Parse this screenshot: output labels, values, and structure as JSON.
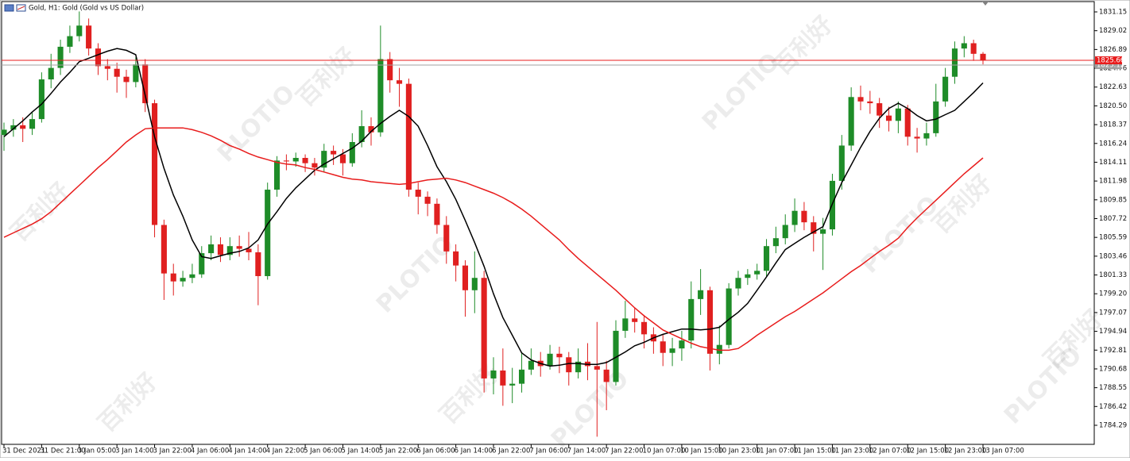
{
  "chart_data": {
    "type": "candlestick",
    "title": "Gold, H1:  Gold (Gold vs US Dollar)",
    "watermark": [
      "百利好",
      "PLOTIO"
    ],
    "categories": [
      "31 Dec 2021",
      null,
      null,
      null,
      "31 Dec 21:00",
      null,
      null,
      null,
      "3 Jan 05:00",
      null,
      null,
      null,
      "3 Jan 14:00",
      null,
      null,
      null,
      "3 Jan 22:00",
      null,
      null,
      null,
      "4 Jan 06:00",
      null,
      null,
      null,
      "4 Jan 14:00",
      null,
      null,
      null,
      "4 Jan 22:00",
      null,
      null,
      null,
      "5 Jan 06:00",
      null,
      null,
      null,
      "5 Jan 14:00",
      null,
      null,
      null,
      "5 Jan 22:00",
      null,
      null,
      null,
      "6 Jan 06:00",
      null,
      null,
      null,
      "6 Jan 14:00",
      null,
      null,
      null,
      "6 Jan 22:00",
      null,
      null,
      null,
      "7 Jan 06:00",
      null,
      null,
      null,
      "7 Jan 14:00",
      null,
      null,
      null,
      "7 Jan 22:00",
      null,
      null,
      null,
      "10 Jan 07:00",
      null,
      null,
      null,
      "10 Jan 15:00",
      null,
      null,
      null,
      "10 Jan 23:00",
      null,
      null,
      null,
      "11 Jan 07:00",
      null,
      null,
      null,
      "11 Jan 15:00",
      null,
      null,
      null,
      "11 Jan 23:00",
      null,
      null,
      null,
      "12 Jan 07:00",
      null,
      null,
      null,
      "12 Jan 15:00",
      null,
      null,
      null,
      "12 Jan 23:00",
      null,
      null,
      null,
      "13 Jan 07:00"
    ],
    "open": [
      1817.2,
      1817.8,
      1818.3,
      1817.9,
      1819.0,
      1823.5,
      1824.8,
      1827.2,
      1828.4,
      1829.6,
      1827.0,
      1825.0,
      1824.7,
      1823.8,
      1823.2,
      1825.2,
      1820.8,
      1807.0,
      1801.5,
      1800.6,
      1801.0,
      1801.4,
      1803.8,
      1804.8,
      1803.6,
      1804.6,
      1804.3,
      1803.9,
      1801.2,
      1811.0,
      1814.3,
      1814.2,
      1814.6,
      1814.0,
      1813.5,
      1815.4,
      1815.0,
      1814.0,
      1816.4,
      1818.2,
      1817.5,
      1825.8,
      1823.4,
      1823.0,
      1811.0,
      1810.2,
      1809.4,
      1807.0,
      1804.0,
      1802.4,
      1799.6,
      1801.0,
      1789.6,
      1790.5,
      1788.8,
      1789.0,
      1790.6,
      1791.6,
      1791.0,
      1792.4,
      1792.0,
      1790.3,
      1791.5,
      1791.0,
      1790.6,
      1789.2,
      1795.0,
      1796.4,
      1796.0,
      1794.6,
      1793.8,
      1792.5,
      1793.0,
      1793.9,
      1798.6,
      1799.6,
      1792.4,
      1793.4,
      1799.8,
      1801.0,
      1801.4,
      1801.8,
      1804.6,
      1805.5,
      1807.0,
      1808.6,
      1807.3,
      1806.0,
      1806.5,
      1812.0,
      1816.0,
      1821.5,
      1821.0,
      1820.8,
      1819.4,
      1818.8,
      1820.2,
      1817.0,
      1816.8,
      1817.4,
      1821.0,
      1823.8,
      1827.0,
      1827.6,
      1826.4
    ],
    "high": [
      1818.6,
      1819.0,
      1819.2,
      1819.8,
      1824.3,
      1826.4,
      1828.0,
      1829.6,
      1831.2,
      1830.4,
      1827.6,
      1825.8,
      1825.4,
      1824.6,
      1826.0,
      1825.8,
      1821.2,
      1807.6,
      1802.6,
      1801.8,
      1802.6,
      1804.6,
      1805.8,
      1805.6,
      1805.6,
      1805.8,
      1806.2,
      1804.8,
      1811.8,
      1814.8,
      1815.0,
      1815.2,
      1815.0,
      1814.6,
      1816.2,
      1816.0,
      1815.6,
      1817.4,
      1820.0,
      1819.2,
      1829.6,
      1826.6,
      1824.8,
      1823.6,
      1811.8,
      1810.8,
      1810.0,
      1808.0,
      1804.8,
      1803.0,
      1804.0,
      1801.8,
      1792.0,
      1793.0,
      1790.8,
      1792.6,
      1793.0,
      1792.6,
      1793.4,
      1793.2,
      1792.6,
      1793.0,
      1793.6,
      1796.0,
      1791.6,
      1796.2,
      1798.4,
      1797.6,
      1796.8,
      1795.4,
      1794.6,
      1794.2,
      1795.0,
      1800.6,
      1802.0,
      1800.0,
      1795.6,
      1800.4,
      1801.8,
      1802.0,
      1802.6,
      1805.4,
      1806.8,
      1808.2,
      1810.0,
      1809.6,
      1808.0,
      1807.8,
      1812.8,
      1817.2,
      1822.6,
      1822.8,
      1822.2,
      1821.4,
      1820.4,
      1821.0,
      1820.6,
      1818.0,
      1818.6,
      1823.0,
      1824.8,
      1827.8,
      1828.4,
      1828.0,
      1826.6
    ],
    "low": [
      1815.4,
      1817.0,
      1816.4,
      1817.2,
      1818.6,
      1822.5,
      1824.0,
      1826.5,
      1827.8,
      1826.2,
      1824.0,
      1823.4,
      1822.0,
      1821.4,
      1822.6,
      1819.8,
      1805.6,
      1798.5,
      1799.0,
      1800.0,
      1800.4,
      1801.0,
      1803.0,
      1802.8,
      1803.0,
      1803.4,
      1803.0,
      1797.9,
      1800.8,
      1810.2,
      1813.2,
      1813.6,
      1813.0,
      1812.6,
      1813.0,
      1813.8,
      1812.6,
      1813.6,
      1815.8,
      1816.0,
      1817.0,
      1822.0,
      1820.4,
      1810.2,
      1808.2,
      1808.0,
      1806.0,
      1802.6,
      1800.6,
      1796.6,
      1797.0,
      1788.0,
      1787.8,
      1786.5,
      1786.8,
      1788.0,
      1790.0,
      1789.8,
      1790.6,
      1790.2,
      1788.8,
      1789.6,
      1789.4,
      1783.0,
      1786.0,
      1788.8,
      1794.2,
      1794.8,
      1793.0,
      1792.4,
      1791.0,
      1791.0,
      1791.6,
      1793.0,
      1796.8,
      1790.5,
      1791.2,
      1793.0,
      1799.0,
      1800.2,
      1800.8,
      1801.2,
      1803.8,
      1804.8,
      1806.2,
      1806.4,
      1804.0,
      1801.9,
      1805.8,
      1811.0,
      1815.4,
      1820.0,
      1819.6,
      1818.0,
      1817.6,
      1817.4,
      1816.0,
      1815.2,
      1816.0,
      1817.0,
      1820.4,
      1823.0,
      1826.0,
      1825.6,
      1825.2
    ],
    "close": [
      1817.8,
      1818.3,
      1817.9,
      1819.0,
      1823.5,
      1824.8,
      1827.2,
      1828.4,
      1829.6,
      1827.0,
      1825.0,
      1824.7,
      1823.8,
      1823.2,
      1825.2,
      1820.8,
      1807.0,
      1801.5,
      1800.6,
      1801.0,
      1801.4,
      1803.8,
      1804.8,
      1803.6,
      1804.6,
      1804.3,
      1803.9,
      1801.2,
      1811.0,
      1814.3,
      1814.2,
      1814.6,
      1814.0,
      1813.5,
      1815.4,
      1815.0,
      1814.0,
      1816.4,
      1818.2,
      1817.5,
      1825.8,
      1823.4,
      1823.0,
      1811.0,
      1810.2,
      1809.4,
      1807.0,
      1804.0,
      1802.4,
      1799.6,
      1801.0,
      1789.6,
      1790.5,
      1788.8,
      1789.0,
      1790.6,
      1791.6,
      1791.0,
      1792.4,
      1792.0,
      1790.3,
      1791.5,
      1791.0,
      1790.6,
      1789.2,
      1795.0,
      1796.4,
      1796.0,
      1794.6,
      1793.8,
      1792.5,
      1793.0,
      1793.9,
      1798.6,
      1799.6,
      1792.4,
      1793.4,
      1799.8,
      1801.0,
      1801.4,
      1801.8,
      1804.6,
      1805.5,
      1807.0,
      1808.6,
      1807.3,
      1806.0,
      1806.5,
      1812.0,
      1816.0,
      1821.5,
      1821.0,
      1820.8,
      1819.4,
      1818.8,
      1820.2,
      1817.0,
      1816.8,
      1817.4,
      1821.0,
      1823.8,
      1827.0,
      1827.6,
      1826.4,
      1825.66
    ],
    "up_color": "#1e8c28",
    "down_color": "#e02020",
    "overlays": [
      {
        "color": "#000000",
        "values": [
          1817.0,
          1817.9,
          1818.8,
          1819.8,
          1820.7,
          1821.9,
          1823.2,
          1824.3,
          1825.5,
          1825.9,
          1826.3,
          1826.7,
          1827.0,
          1826.8,
          1826.3,
          1821.7,
          1817.0,
          1813.4,
          1810.4,
          1808.0,
          1805.3,
          1803.4,
          1803.2,
          1803.5,
          1803.8,
          1804.0,
          1804.4,
          1805.3,
          1807.1,
          1808.5,
          1810.0,
          1811.2,
          1812.2,
          1813.2,
          1813.9,
          1814.5,
          1815.1,
          1815.7,
          1816.5,
          1817.6,
          1818.5,
          1819.3,
          1820.0,
          1819.3,
          1818.2,
          1816.0,
          1813.6,
          1811.9,
          1809.9,
          1807.5,
          1805.0,
          1802.3,
          1799.2,
          1796.5,
          1794.5,
          1792.5,
          1791.7,
          1791.3,
          1791.0,
          1791.1,
          1791.3,
          1791.3,
          1791.2,
          1791.2,
          1791.4,
          1792.0,
          1792.6,
          1793.3,
          1793.7,
          1794.2,
          1794.6,
          1794.9,
          1795.2,
          1795.2,
          1795.1,
          1795.2,
          1795.4,
          1796.3,
          1797.1,
          1798.1,
          1799.6,
          1801.1,
          1802.7,
          1804.2,
          1804.9,
          1805.6,
          1806.2,
          1806.8,
          1809.4,
          1811.8,
          1813.8,
          1815.8,
          1817.6,
          1819.1,
          1820.2,
          1820.8,
          1820.2,
          1819.4,
          1818.8,
          1819.0,
          1819.5,
          1820.0,
          1821.0,
          1822.0,
          1823.1
        ]
      },
      {
        "color": "#e81c1c",
        "values": [
          1805.6,
          1806.1,
          1806.6,
          1807.1,
          1807.7,
          1808.5,
          1809.5,
          1810.5,
          1811.5,
          1812.5,
          1813.5,
          1814.4,
          1815.4,
          1816.4,
          1817.2,
          1817.9,
          1818.0,
          1818.0,
          1818.0,
          1818.0,
          1817.8,
          1817.5,
          1817.1,
          1816.6,
          1816.0,
          1815.6,
          1815.1,
          1814.7,
          1814.4,
          1814.1,
          1813.9,
          1813.8,
          1813.5,
          1813.3,
          1813.0,
          1812.7,
          1812.4,
          1812.2,
          1812.1,
          1811.9,
          1811.8,
          1811.7,
          1811.6,
          1811.7,
          1811.9,
          1812.1,
          1812.2,
          1812.3,
          1812.1,
          1811.8,
          1811.4,
          1811.0,
          1810.6,
          1810.1,
          1809.5,
          1808.8,
          1808.0,
          1807.1,
          1806.2,
          1805.3,
          1804.2,
          1803.2,
          1802.3,
          1801.4,
          1800.5,
          1799.6,
          1798.6,
          1797.6,
          1796.7,
          1795.9,
          1795.1,
          1794.6,
          1794.1,
          1793.6,
          1793.2,
          1793.0,
          1792.8,
          1792.8,
          1793.0,
          1793.7,
          1794.5,
          1795.2,
          1795.9,
          1796.6,
          1797.2,
          1797.9,
          1798.6,
          1799.3,
          1800.1,
          1800.9,
          1801.7,
          1802.4,
          1803.2,
          1804.0,
          1804.7,
          1805.5,
          1806.7,
          1807.8,
          1808.8,
          1809.8,
          1810.8,
          1811.8,
          1812.8,
          1813.7,
          1814.6
        ]
      }
    ],
    "price_lines": [
      {
        "value": 1825.66,
        "color": "#e81c1c"
      },
      {
        "value": 1825.12,
        "color": "#a0a0a0"
      }
    ],
    "ylim": [
      1782.13,
      1832.32
    ],
    "yticks": [
      1831.15,
      1829.02,
      1826.89,
      1824.76,
      1822.63,
      {
        "value": 1820.5,
        "label": "1820.50"
      },
      1818.37,
      1816.24,
      1814.11,
      1811.98,
      1809.85,
      1807.72,
      1805.59,
      1803.46,
      1801.33,
      {
        "value": 1799.2,
        "label": "1799.20"
      },
      1797.07,
      1794.94,
      1792.81,
      1790.68,
      1788.55,
      1786.42,
      1784.29
    ],
    "grid": false
  }
}
